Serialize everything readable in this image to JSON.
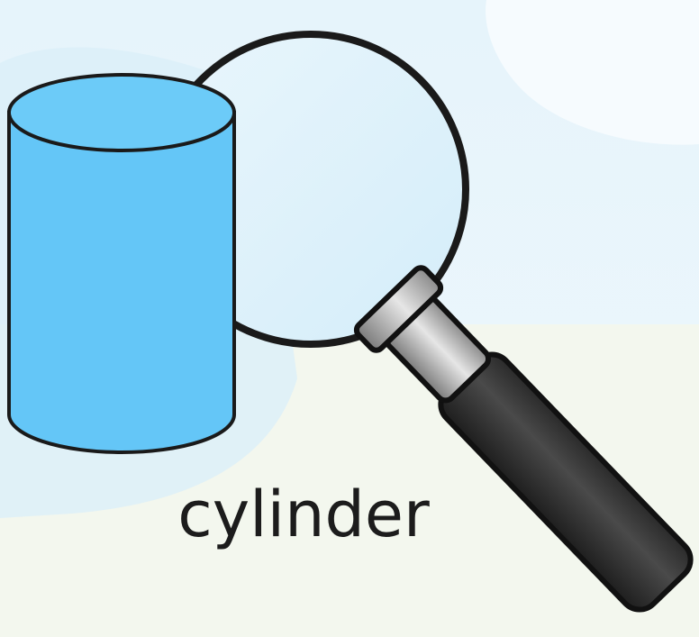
{
  "label": "cylinder"
}
